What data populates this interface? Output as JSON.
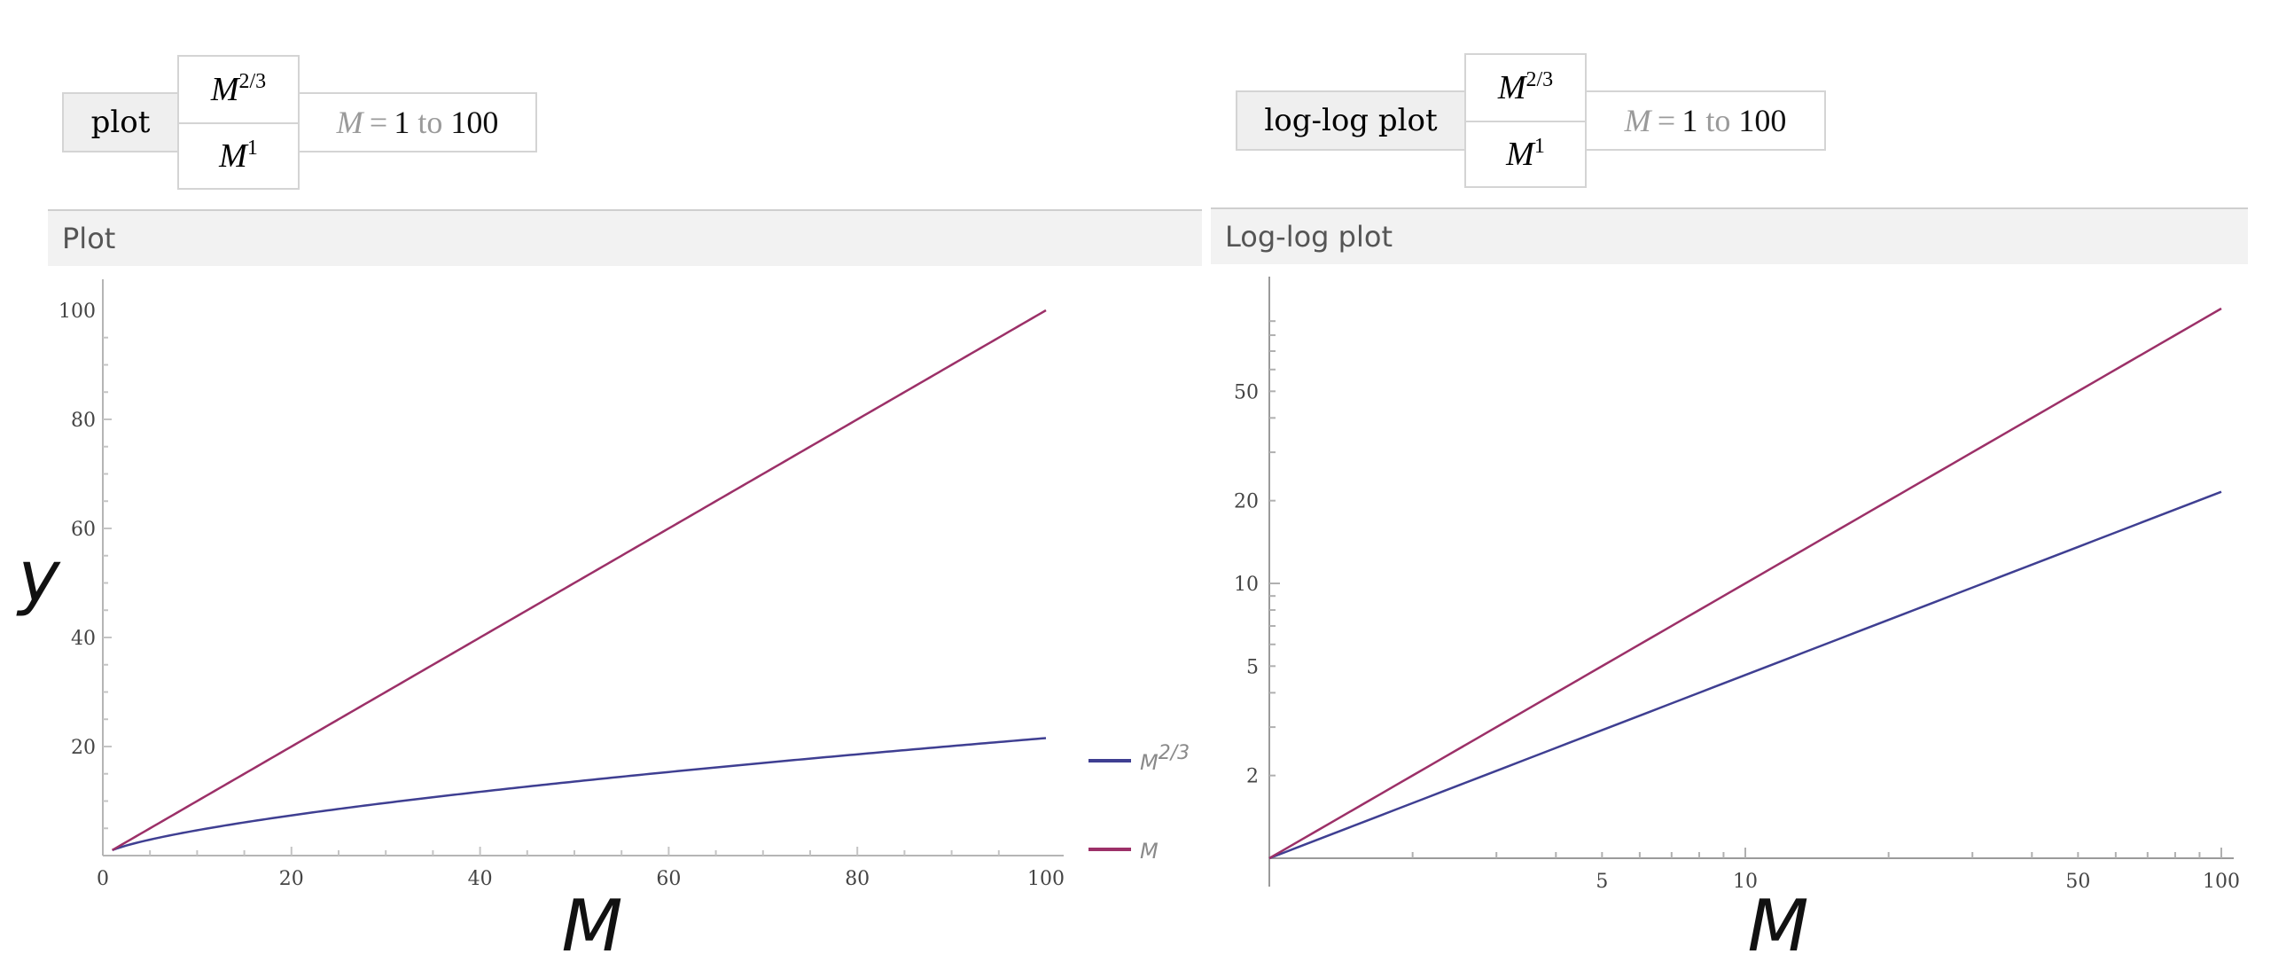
{
  "left_input": {
    "command": "plot",
    "expr1": {
      "base": "M",
      "exp": "2/3"
    },
    "expr2": {
      "base": "M",
      "exp": "1"
    },
    "range": {
      "var": "M",
      "eq": "=",
      "from": "1",
      "to_word": "to",
      "to": "100"
    }
  },
  "right_input": {
    "command": "log-log plot",
    "expr1": {
      "base": "M",
      "exp": "2/3"
    },
    "expr2": {
      "base": "M",
      "exp": "1"
    },
    "range": {
      "var": "M",
      "eq": "=",
      "from": "1",
      "to_word": "to",
      "to": "100"
    }
  },
  "colors": {
    "blue": "#3f3f92",
    "red": "#9c3068"
  },
  "chart_data": [
    {
      "type": "line",
      "title": "Plot",
      "xlabel": "M",
      "ylabel": "y",
      "xlim": [
        0,
        100
      ],
      "ylim": [
        0,
        100
      ],
      "x_ticks": [
        0,
        20,
        40,
        60,
        80,
        100
      ],
      "y_ticks": [
        20,
        40,
        60,
        80,
        100
      ],
      "legend": "right",
      "series": [
        {
          "name": "M",
          "exp_label": "2/3",
          "exponent": 0.6667,
          "color": "#3f3f92"
        },
        {
          "name": "M",
          "exp_label": "",
          "exponent": 1,
          "color": "#9c3068"
        }
      ],
      "x_range": [
        1,
        100
      ]
    },
    {
      "type": "line",
      "title": "Log-log plot",
      "xlabel": "M",
      "scale": "log-log",
      "xlim": [
        1,
        100
      ],
      "ylim": [
        1,
        100
      ],
      "x_ticks": [
        5,
        10,
        50,
        100
      ],
      "y_ticks": [
        2,
        5,
        10,
        20,
        50
      ],
      "series": [
        {
          "exponent": 0.6667,
          "color": "#3f3f92"
        },
        {
          "exponent": 1,
          "color": "#9c3068"
        }
      ],
      "x_range": [
        1,
        100
      ]
    }
  ]
}
